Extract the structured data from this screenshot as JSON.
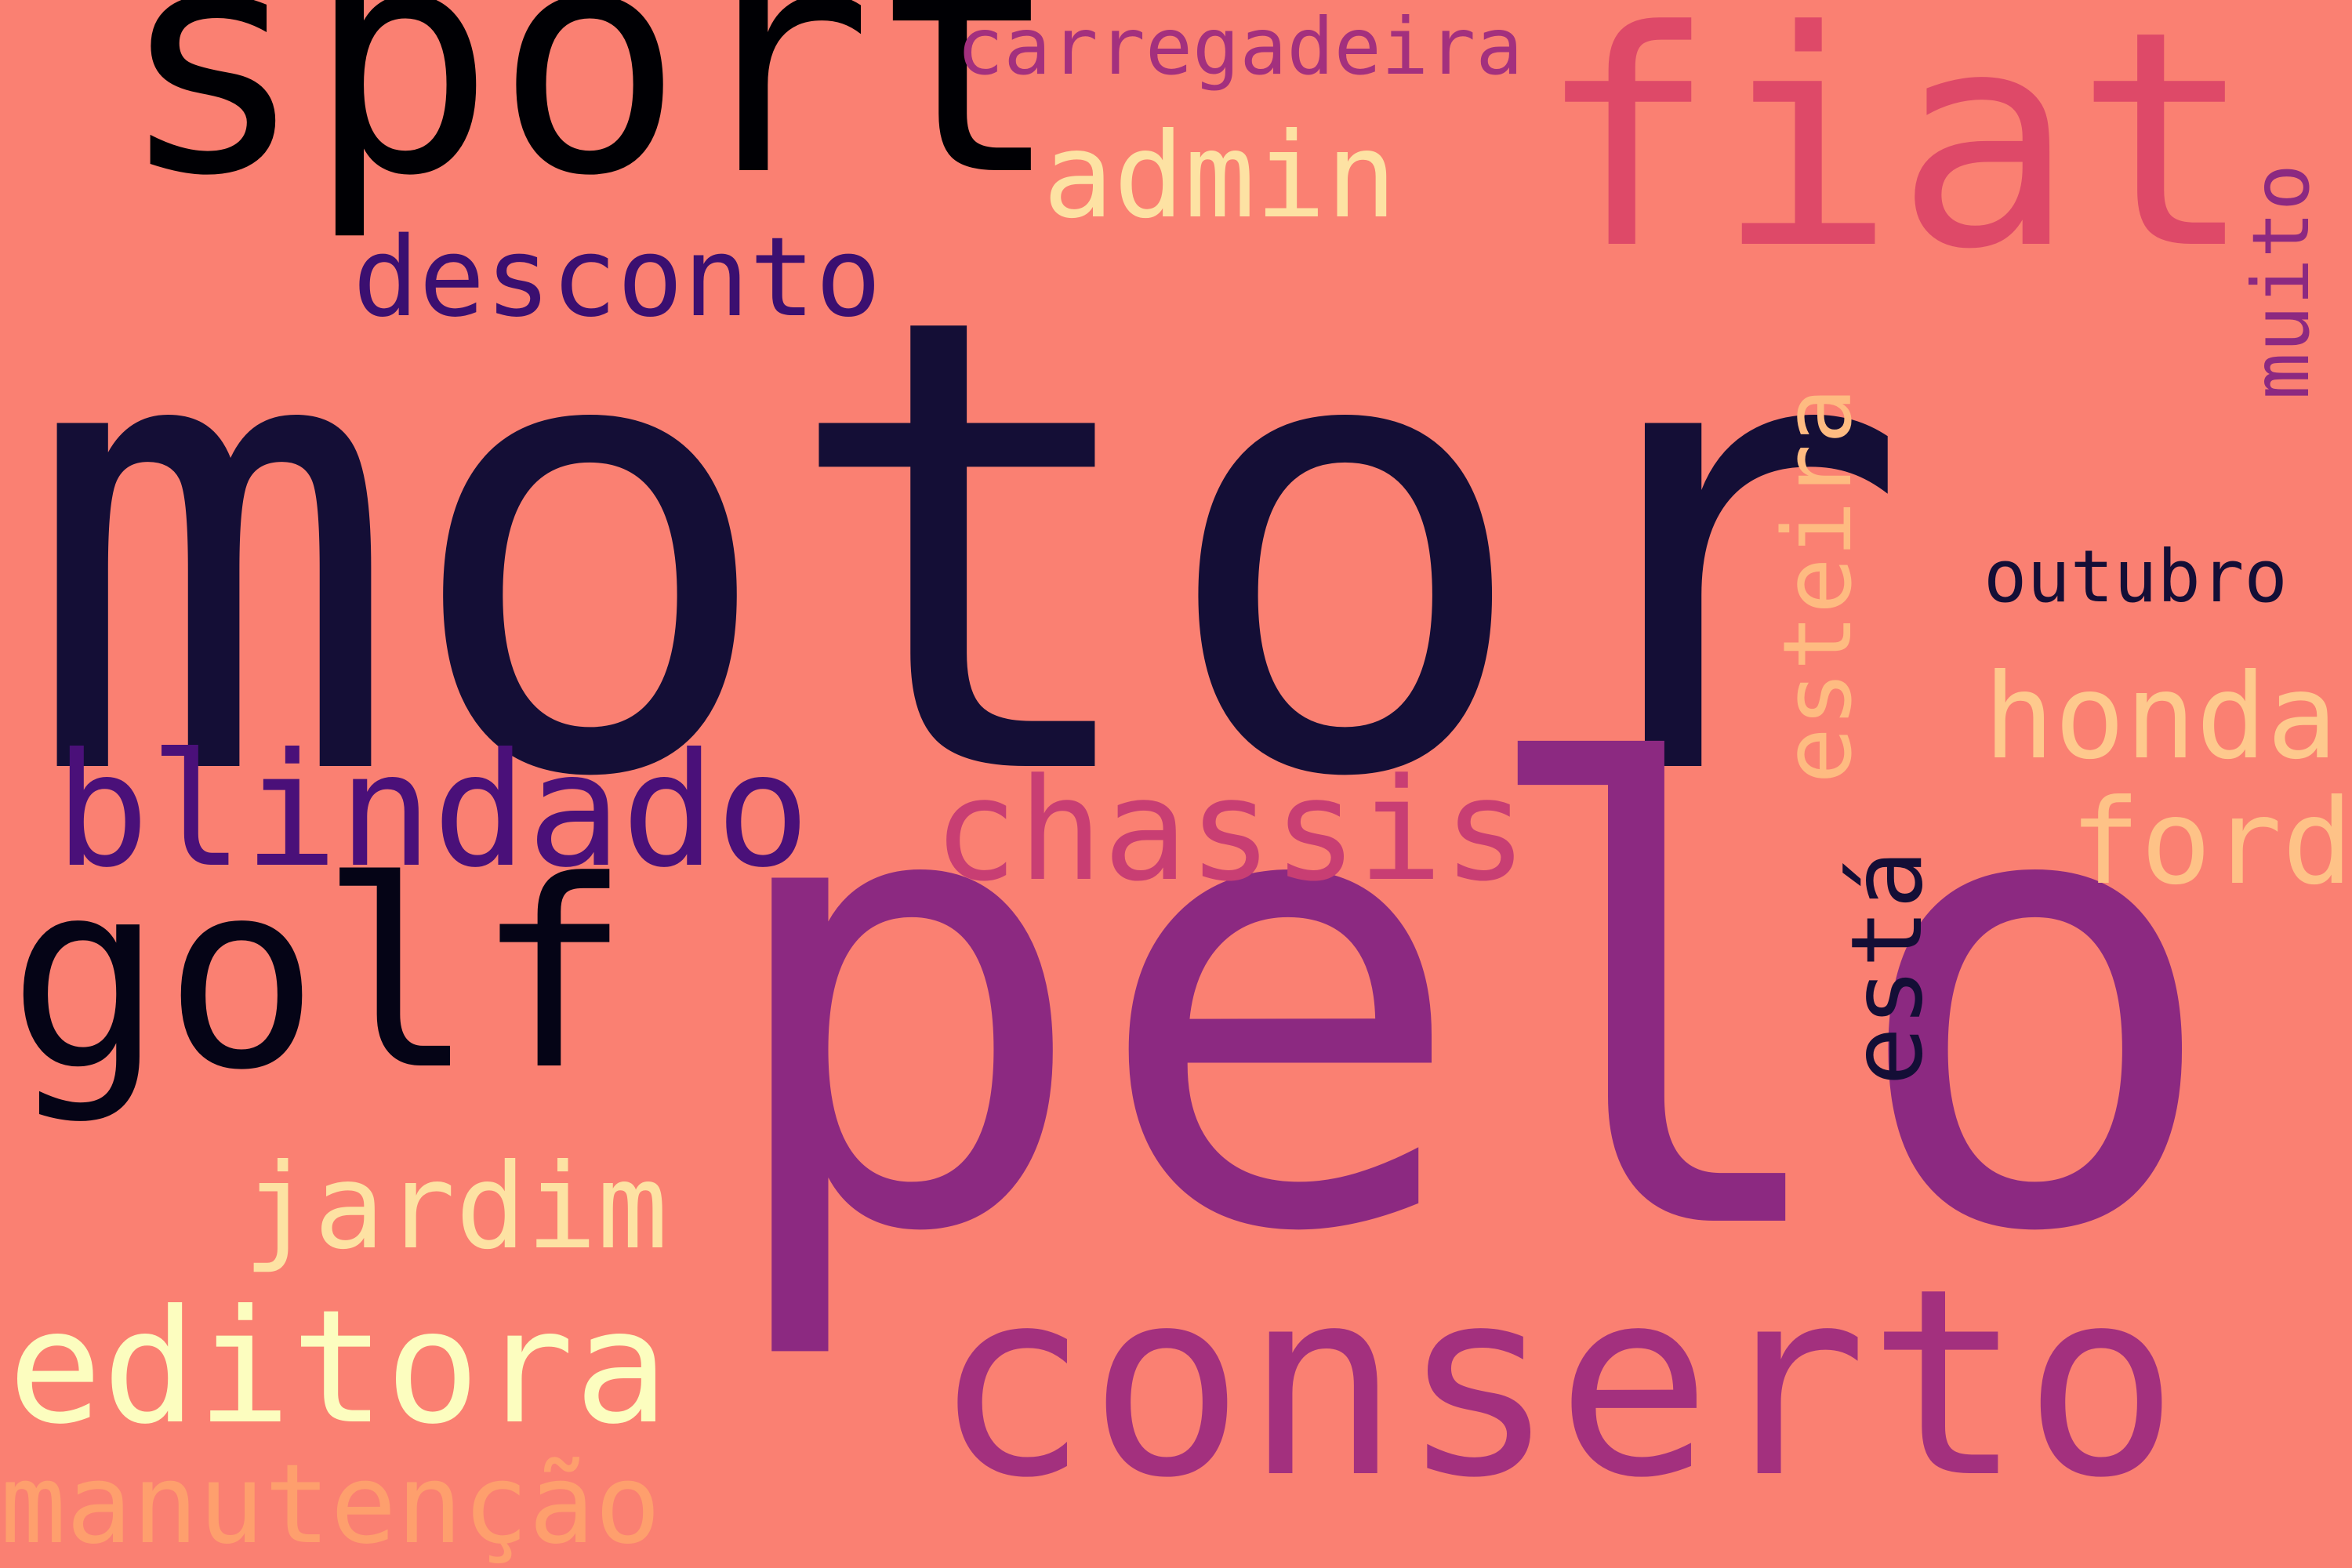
{
  "background": "#fa8072",
  "words": {
    "motor": {
      "text": "motor",
      "color": "#140e36"
    },
    "pelo": {
      "text": "pelo",
      "color": "#8c2981"
    },
    "fiat": {
      "text": "fiat",
      "color": "#de4968"
    },
    "sport": {
      "text": "sport",
      "color": "#000004"
    },
    "golf": {
      "text": "golf",
      "color": "#050416"
    },
    "conserto": {
      "text": "conserto",
      "color": "#a3307e"
    },
    "carregadeira": {
      "text": "carregadeira",
      "color": "#a3307e"
    },
    "admin": {
      "text": "admin",
      "color": "#fde2a3"
    },
    "desconto": {
      "text": "desconto",
      "color": "#3b0f70"
    },
    "blindado": {
      "text": "blindado",
      "color": "#4a1079"
    },
    "chassis": {
      "text": "chassis",
      "color": "#c83e73"
    },
    "outubro": {
      "text": "outubro",
      "color": "#140e36"
    },
    "honda": {
      "text": "honda",
      "color": "#fec98d"
    },
    "ford": {
      "text": "ford",
      "color": "#fec287"
    },
    "jardim": {
      "text": "jardim",
      "color": "#fde2a3"
    },
    "editora": {
      "text": "editora",
      "color": "#fcfdbf"
    },
    "manutencao": {
      "text": "manutenção",
      "color": "#fe9f6d"
    },
    "muito": {
      "text": "muito",
      "color": "#8c2981"
    },
    "esteira": {
      "text": "esteira",
      "color": "#febb81"
    },
    "esta": {
      "text": "está",
      "color": "#140e36"
    }
  }
}
